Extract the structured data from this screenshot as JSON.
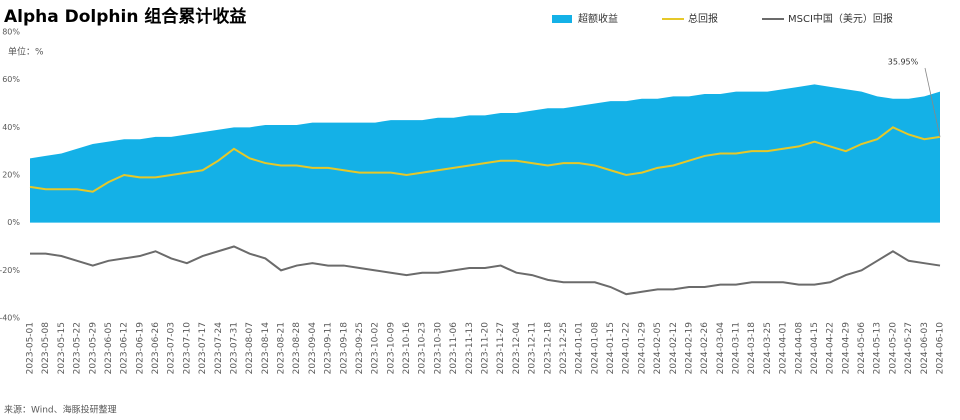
{
  "chart_data": {
    "type": "area-line",
    "title": "Alpha Dolphin 组合累计收益",
    "y_axis_label": "单位：%",
    "source": "来源：Wind、海豚投研整理",
    "annotation": "35.95%",
    "x": [
      "2023-05-01",
      "2023-05-08",
      "2023-05-15",
      "2023-05-22",
      "2023-05-29",
      "2023-06-05",
      "2023-06-12",
      "2023-06-19",
      "2023-06-26",
      "2023-07-03",
      "2023-07-10",
      "2023-07-17",
      "2023-07-24",
      "2023-07-31",
      "2023-08-07",
      "2023-08-14",
      "2023-08-21",
      "2023-08-28",
      "2023-09-04",
      "2023-09-11",
      "2023-09-18",
      "2023-09-25",
      "2023-10-02",
      "2023-10-09",
      "2023-10-16",
      "2023-10-23",
      "2023-10-30",
      "2023-11-06",
      "2023-11-13",
      "2023-11-20",
      "2023-11-27",
      "2023-12-04",
      "2023-12-11",
      "2023-12-18",
      "2023-12-25",
      "2024-01-01",
      "2024-01-08",
      "2024-01-15",
      "2024-01-22",
      "2024-01-29",
      "2024-02-05",
      "2024-02-12",
      "2024-02-19",
      "2024-02-26",
      "2024-03-04",
      "2024-03-11",
      "2024-03-18",
      "2024-03-25",
      "2024-04-01",
      "2024-04-08",
      "2024-04-15",
      "2024-04-22",
      "2024-04-29",
      "2024-05-06",
      "2024-05-13",
      "2024-05-20",
      "2024-05-27",
      "2024-06-03",
      "2024-06-10"
    ],
    "series": [
      {
        "name": "超额收益",
        "kind": "area",
        "color": "#14b1e7",
        "values": [
          27,
          28,
          29,
          31,
          33,
          34,
          35,
          35,
          36,
          36,
          37,
          38,
          39,
          40,
          40,
          41,
          41,
          41,
          42,
          42,
          42,
          42,
          42,
          43,
          43,
          43,
          44,
          44,
          45,
          45,
          46,
          46,
          47,
          48,
          48,
          49,
          50,
          51,
          51,
          52,
          52,
          53,
          53,
          54,
          54,
          55,
          55,
          55,
          56,
          57,
          58,
          57,
          56,
          55,
          53,
          52,
          52,
          53,
          55
        ]
      },
      {
        "name": "总回报",
        "kind": "line",
        "color": "#e6c829",
        "values": [
          15,
          14,
          14,
          14,
          13,
          17,
          20,
          19,
          19,
          20,
          21,
          22,
          26,
          31,
          27,
          25,
          24,
          24,
          23,
          23,
          22,
          21,
          21,
          21,
          20,
          21,
          22,
          23,
          24,
          25,
          26,
          26,
          25,
          24,
          25,
          25,
          24,
          22,
          20,
          21,
          23,
          24,
          26,
          28,
          29,
          29,
          30,
          30,
          31,
          32,
          34,
          32,
          30,
          33,
          35,
          40,
          37,
          35,
          36
        ]
      },
      {
        "name": "MSCI中国（美元）回报",
        "kind": "line",
        "color": "#6b6b6b",
        "values": [
          -13,
          -13,
          -14,
          -16,
          -18,
          -16,
          -15,
          -14,
          -12,
          -15,
          -17,
          -14,
          -12,
          -10,
          -13,
          -15,
          -20,
          -18,
          -17,
          -18,
          -18,
          -19,
          -20,
          -21,
          -22,
          -21,
          -21,
          -20,
          -19,
          -19,
          -18,
          -21,
          -22,
          -24,
          -25,
          -25,
          -25,
          -27,
          -30,
          -29,
          -28,
          -28,
          -27,
          -27,
          -26,
          -26,
          -25,
          -25,
          -25,
          -26,
          -26,
          -25,
          -22,
          -20,
          -16,
          -12,
          -16,
          -17,
          -18
        ]
      }
    ],
    "ylim": [
      -40,
      80
    ],
    "yticks": [
      {
        "value": -40,
        "label": "-40%"
      },
      {
        "value": -20,
        "label": "-20%"
      },
      {
        "value": 0,
        "label": "0%"
      },
      {
        "value": 20,
        "label": "20%"
      },
      {
        "value": 40,
        "label": "40%"
      },
      {
        "value": 60,
        "label": "60%"
      },
      {
        "value": 80,
        "label": "80%"
      }
    ],
    "grid": false
  }
}
